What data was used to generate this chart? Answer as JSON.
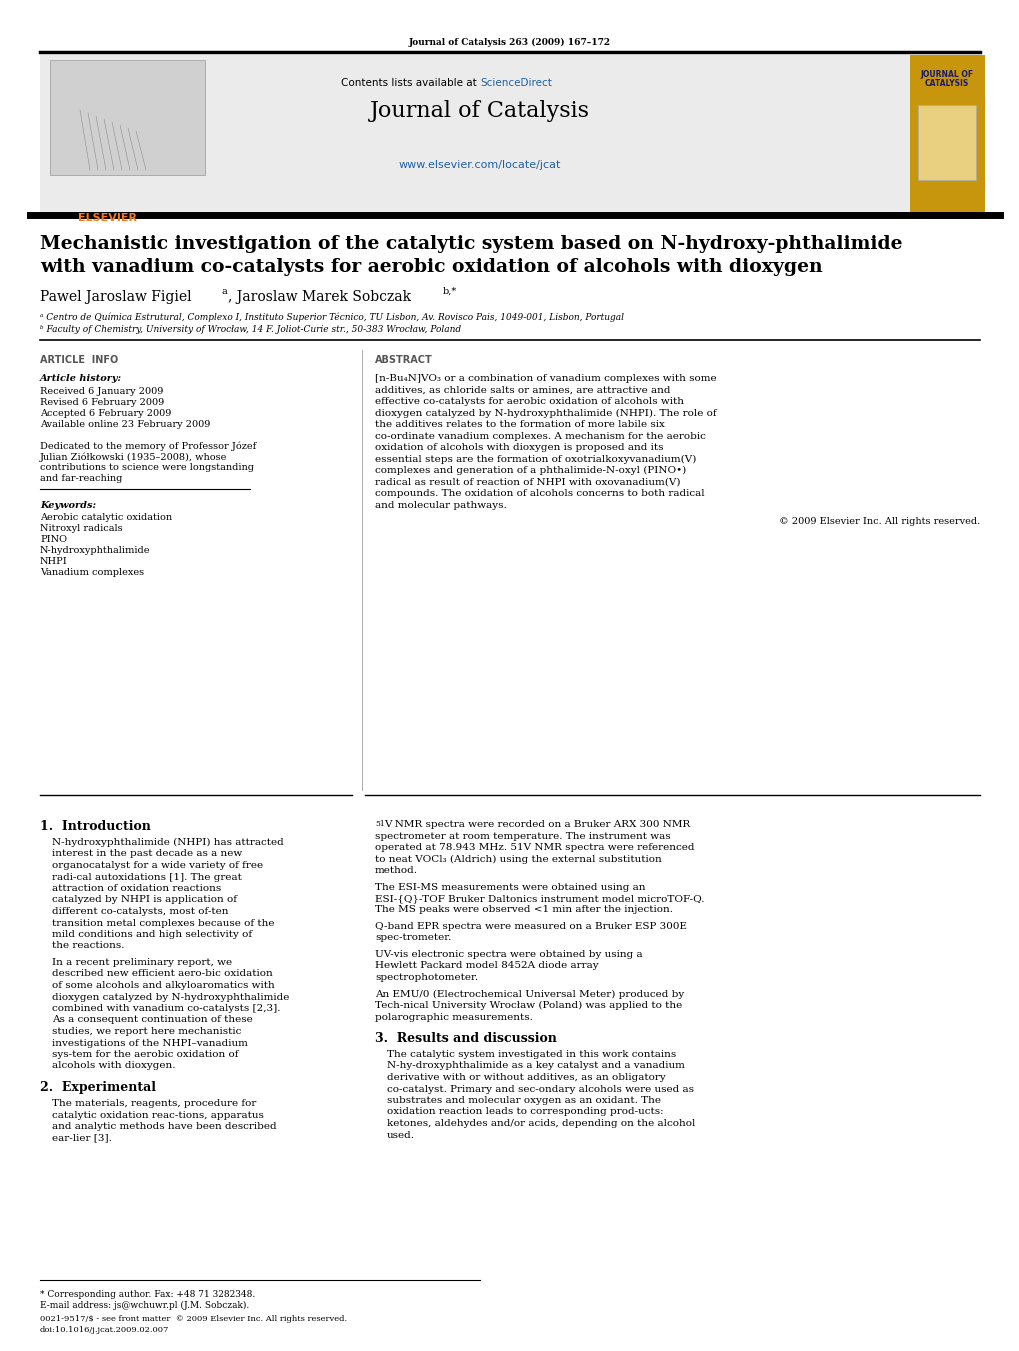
{
  "journal_info": "Journal of Catalysis 263 (2009) 167–172",
  "contents_line_pre": "Contents lists available at ",
  "contents_scidir": "ScienceDirect",
  "journal_name": "Journal of Catalysis",
  "journal_url": "www.elsevier.com/locate/jcat",
  "title_line1": "Mechanistic investigation of the catalytic system based on N-hydroxy-phthalimide",
  "title_line2": "with vanadium co-catalysts for aerobic oxidation of alcohols with dioxygen",
  "author_line": "Pawel Jaroslaw Figielᵃ, Jaroslaw Marek Sobczakᵇ,*",
  "affil_a": "ᵃ Centro de Química Estrutural, Complexo I, Instituto Superior Técnico, TU Lisbon, Av. Rovisco Pais, 1049-001, Lisbon, Portugal",
  "affil_b": "ᵇ Faculty of Chemistry, University of Wrocław, 14 F. Joliot-Curie str., 50-383 Wrocław, Poland",
  "art_info_header": "ARTICLE  INFO",
  "abstract_header": "ABSTRACT",
  "article_history_label": "Article history:",
  "received": "Received 6 January 2009",
  "revised": "Revised 6 February 2009",
  "accepted": "Accepted 6 February 2009",
  "available": "Available online 23 February 2009",
  "dedication1": "Dedicated to the memory of Professor Józef",
  "dedication2": "Julian Ziółkowski (1935–2008), whose",
  "dedication3": "contributions to science were longstanding",
  "dedication4": "and far-reaching",
  "keywords_label": "Keywords:",
  "keywords": [
    "Aerobic catalytic oxidation",
    "Nitroxyl radicals",
    "PINO",
    "N-hydroxyphthalimide",
    "NHPI",
    "Vanadium complexes"
  ],
  "abstract_text": "[n-Bu₄N]VO₃ or a combination of vanadium complexes with some additives, as chloride salts or amines, are attractive and effective co-catalysts for aerobic oxidation of alcohols with dioxygen catalyzed by N-hydroxyphthalimide (NHPI). The role of the additives relates to the formation of more labile six co-ordinate vanadium complexes. A mechanism for the aerobic oxidation of alcohols with dioxygen is proposed and its essential steps are the formation of oxotrialkoxyvanadium(V) complexes and generation of a phthalimide-N-oxyl (PINO•) radical as result of reaction of NHPI with oxovanadium(V) compounds. The oxidation of alcohols concerns to both radical and molecular pathways.",
  "copyright": "© 2009 Elsevier Inc. All rights reserved.",
  "sec1": "1.  Introduction",
  "intro_p1_indent": "N-hydroxyphthalimide (NHPI) has attracted interest in the past decade as a new organocatalyst for a wide variety of free radi-cal autoxidations [1]. The great attraction of oxidation reactions catalyzed by NHPI is application of different co-catalysts, most of-ten transition metal complexes because of the mild conditions and high selectivity of the reactions.",
  "intro_p2_indent": "In a recent preliminary report, we described new efficient aero-bic oxidation of some alcohols and alkyloaromatics with dioxygen catalyzed by N-hydroxyphthalimide combined with vanadium co-catalysts [2,3]. As a consequent continuation of these studies, we report here mechanistic investigations of the NHPI–vanadium sys-tem for the aerobic oxidation of alcohols with dioxygen.",
  "sec2": "2.  Experimental",
  "exp_p1_indent": "The materials, reagents, procedure for catalytic oxidation reac-tions, apparatus and analytic methods have been described ear-lier [3].",
  "sec_right_nmr": "51V NMR spectra were recorded on a Bruker ARX 300 NMR spectrometer at room temperature. The instrument was operated at 78.943 MHz. 51V NMR spectra were referenced to neat VOCl3 (Aldrich) using the external substitution method.",
  "sec_right_esi": "The ESI-MS measurements were obtained using an ESI-{Q}-TOF Bruker Daltonics instrument model microTOF-Q. The MS peaks were observed <1 min after the injection.",
  "sec_right_qband": "Q-band EPR spectra were measured on a Bruker ESP 300E spec-trometer.",
  "sec_right_uvvis": "UV-vis electronic spectra were obtained by using a Hewlett Packard model 8452A diode array spectrophotometer.",
  "sec_right_emu": "An EMU/0 (Electrochemical Universal Meter) produced by Tech-nical University Wrocław (Poland) was applied to the polarographic measurements.",
  "sec3": "3.  Results and discussion",
  "res_p1": "The catalytic system investigated in this work contains N-hy-droxyphthalimide as a key catalyst and a vanadium derivative with or without additives, as an obligatory co-catalyst. Primary and sec-ondary alcohols were used as substrates and molecular oxygen as an oxidant. The oxidation reaction leads to corresponding prod-ucts: ketones, aldehydes and/or acids, depending on the alcohol used.",
  "footnote_star": "* Corresponding author. Fax: +48 71 3282348.",
  "footnote_email": "E-mail address: js@wchuwr.pl (J.M. Sobczak).",
  "issn_line": "0021-9517/$ - see front matter  © 2009 Elsevier Inc. All rights reserved.",
  "doi_line": "doi:10.1016/j.jcat.2009.02.007",
  "elsevier_orange": "#f47920",
  "sciencedirect_blue": "#2060a0",
  "url_blue": "#2060a0",
  "gold_bg": "#c8960c",
  "header_gray": "#ebebeb"
}
